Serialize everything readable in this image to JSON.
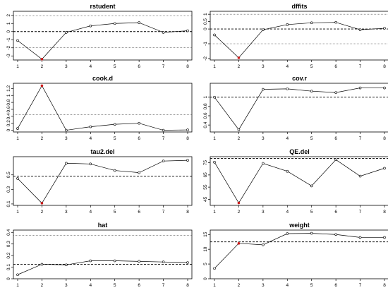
{
  "chart_data": [
    {
      "type": "line",
      "title": "rstudent",
      "x": [
        1,
        2,
        3,
        4,
        5,
        6,
        7,
        8
      ],
      "values": [
        -1.1,
        -3.4,
        -0.1,
        0.7,
        1.0,
        1.1,
        -0.1,
        0.1
      ],
      "yticks": [
        -3,
        -2,
        -1,
        0,
        1,
        2
      ],
      "ylim": [
        -3.5,
        2.5
      ],
      "refline": 0,
      "cutoffs": [
        -1.96,
        1.96
      ],
      "flagged": [
        2
      ]
    },
    {
      "type": "line",
      "title": "dffits",
      "x": [
        1,
        2,
        3,
        4,
        5,
        6,
        7,
        8
      ],
      "values": [
        -0.4,
        -1.95,
        -0.05,
        0.3,
        0.42,
        0.45,
        -0.05,
        0.05
      ],
      "yticks": [
        -2.0,
        -1.0,
        0.0,
        0.5,
        1.0
      ],
      "ylim": [
        -2.1,
        1.2
      ],
      "refline": 0,
      "cutoffs": [
        -1.0,
        1.0
      ],
      "flagged": [
        2
      ]
    },
    {
      "type": "line",
      "title": "cook.d",
      "x": [
        1,
        2,
        3,
        4,
        5,
        6,
        7,
        8
      ],
      "values": [
        0.05,
        1.28,
        0.0,
        0.1,
        0.17,
        0.2,
        0.0,
        0.01
      ],
      "yticks": [
        0.0,
        0.2,
        0.4,
        0.6,
        0.8,
        1.0,
        1.2
      ],
      "ylim": [
        -0.05,
        1.35
      ],
      "cutoffs": [
        0.45
      ],
      "flagged": [
        2
      ]
    },
    {
      "type": "line",
      "title": "cov.r",
      "x": [
        1,
        2,
        3,
        4,
        5,
        6,
        7,
        8
      ],
      "values": [
        1.0,
        0.3,
        1.17,
        1.18,
        1.13,
        1.1,
        1.2,
        1.2
      ],
      "yticks": [
        0.4,
        0.6,
        0.8,
        1.0
      ],
      "ylim": [
        0.25,
        1.3
      ],
      "refline": 1.0,
      "flagged": []
    },
    {
      "type": "line",
      "title": "tau2.del",
      "x": [
        1,
        2,
        3,
        4,
        5,
        6,
        7,
        8
      ],
      "values": [
        0.45,
        0.11,
        0.66,
        0.65,
        0.56,
        0.53,
        0.69,
        0.7
      ],
      "yticks": [
        0.1,
        0.3,
        0.5
      ],
      "ylim": [
        0.08,
        0.75
      ],
      "refline": 0.48,
      "flagged": [
        2
      ]
    },
    {
      "type": "line",
      "title": "QE.del",
      "x": [
        1,
        2,
        3,
        4,
        5,
        6,
        7,
        8
      ],
      "values": [
        75.5,
        42.0,
        74.5,
        68.0,
        56.0,
        77.5,
        64.0,
        70.5
      ],
      "yticks": [
        45,
        55,
        65,
        75
      ],
      "ylim": [
        40,
        80
      ],
      "refline": 78.5,
      "flagged": [
        2
      ]
    },
    {
      "type": "line",
      "title": "hat",
      "x": [
        1,
        2,
        3,
        4,
        5,
        6,
        7,
        8
      ],
      "values": [
        0.035,
        0.125,
        0.12,
        0.155,
        0.155,
        0.15,
        0.145,
        0.14
      ],
      "yticks": [
        0.0,
        0.1,
        0.2,
        0.3,
        0.4
      ],
      "ylim": [
        0.0,
        0.42
      ],
      "refline": 0.125,
      "cutoffs": [
        0.375
      ],
      "flagged": []
    },
    {
      "type": "line",
      "title": "weight",
      "x": [
        1,
        2,
        3,
        4,
        5,
        6,
        7,
        8
      ],
      "values": [
        3.5,
        12.0,
        11.5,
        15.3,
        15.4,
        15.0,
        14.0,
        14.0
      ],
      "yticks": [
        0,
        5,
        10,
        15
      ],
      "ylim": [
        0,
        16.5
      ],
      "refline": 12.5,
      "flagged": [
        2
      ]
    }
  ]
}
